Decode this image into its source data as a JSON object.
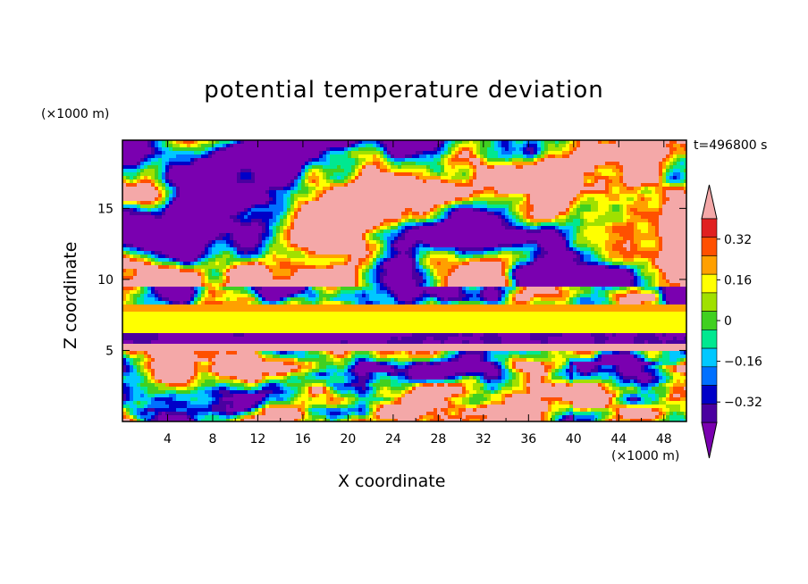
{
  "chart_data": {
    "type": "heatmap",
    "title": "potential temperature deviation",
    "xlabel": "X coordinate",
    "ylabel": "Z coordinate",
    "x_unit": "(×1000 m)",
    "z_unit": "(×1000 m)",
    "time_label": "t=496800 s",
    "xlim": [
      0,
      50
    ],
    "ylim": [
      0,
      19.8
    ],
    "x_ticks": [
      4,
      8,
      12,
      16,
      20,
      24,
      28,
      32,
      36,
      40,
      44,
      48
    ],
    "y_ticks": [
      5,
      10,
      15
    ],
    "colorbar": {
      "levels": [
        -0.4,
        -0.32,
        -0.24,
        -0.16,
        -0.08,
        0,
        0.08,
        0.16,
        0.24,
        0.32,
        0.4
      ],
      "tick_labels": [
        "0.32",
        "0.16",
        "0",
        "−0.16",
        "−0.32"
      ],
      "tick_values": [
        0.32,
        0.16,
        0,
        -0.16,
        -0.32
      ],
      "colors": [
        "#7a00b0",
        "#4a00a0",
        "#0000c8",
        "#0070ff",
        "#00c8ff",
        "#00e890",
        "#40d020",
        "#a0e000",
        "#ffff00",
        "#ffa000",
        "#ff5000",
        "#e02020",
        "#f4a8a8"
      ],
      "extend": "both"
    }
  }
}
